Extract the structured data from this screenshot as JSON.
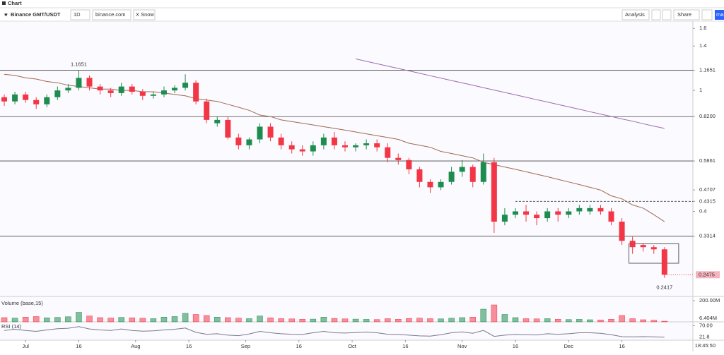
{
  "ui": {
    "tab": "Chart",
    "symbol": "Binance GMT/USDT",
    "interval": "1D",
    "source": "binance.com",
    "user": "X Snow",
    "analysis": "Analysis",
    "share": "Share",
    "cut_button": "ma",
    "time": "18:45:50"
  },
  "chart_data": {
    "type": "candlestick",
    "x": [
      0,
      3,
      6,
      9,
      12,
      15,
      18,
      21,
      24,
      27,
      30,
      33,
      36,
      39,
      42,
      45,
      48,
      51,
      54,
      57,
      60,
      63,
      66,
      69,
      72,
      75,
      78,
      81,
      84,
      87,
      90,
      93,
      96,
      99,
      102,
      105,
      108,
      111,
      114,
      117,
      120,
      123,
      126,
      129,
      132,
      135,
      138,
      141,
      144,
      147,
      150,
      153,
      156,
      159,
      162,
      165,
      168,
      171,
      174,
      177,
      180,
      183,
      186
    ],
    "open": [
      0.95,
      0.92,
      0.97,
      0.93,
      0.9,
      0.95,
      1.0,
      1.02,
      1.1,
      1.03,
      1.0,
      0.98,
      1.03,
      0.99,
      0.96,
      0.97,
      1.0,
      1.02,
      1.06,
      0.92,
      0.78,
      0.8,
      0.7,
      0.66,
      0.69,
      0.76,
      0.7,
      0.66,
      0.64,
      0.63,
      0.66,
      0.7,
      0.66,
      0.65,
      0.66,
      0.67,
      0.65,
      0.6,
      0.59,
      0.55,
      0.5,
      0.48,
      0.5,
      0.54,
      0.56,
      0.5,
      0.58,
      0.37,
      0.39,
      0.4,
      0.39,
      0.38,
      0.4,
      0.39,
      0.4,
      0.4,
      0.41,
      0.4,
      0.37,
      0.32,
      0.31,
      0.305,
      0.3
    ],
    "high": [
      0.97,
      0.99,
      0.99,
      0.95,
      0.97,
      1.03,
      1.05,
      1.1651,
      1.12,
      1.05,
      1.02,
      1.06,
      1.05,
      1.01,
      0.99,
      1.03,
      1.04,
      1.13,
      1.08,
      0.94,
      0.82,
      0.82,
      0.72,
      0.7,
      0.78,
      0.78,
      0.72,
      0.68,
      0.66,
      0.68,
      0.72,
      0.73,
      0.68,
      0.67,
      0.69,
      0.69,
      0.67,
      0.62,
      0.6,
      0.56,
      0.51,
      0.51,
      0.56,
      0.59,
      0.57,
      0.62,
      0.6,
      0.41,
      0.41,
      0.42,
      0.4,
      0.41,
      0.41,
      0.41,
      0.42,
      0.42,
      0.42,
      0.41,
      0.38,
      0.33,
      0.315,
      0.31,
      0.305
    ],
    "low": [
      0.89,
      0.9,
      0.91,
      0.87,
      0.88,
      0.93,
      0.98,
      1.0,
      1.0,
      0.97,
      0.95,
      0.96,
      0.97,
      0.93,
      0.94,
      0.95,
      0.98,
      1.0,
      0.9,
      0.78,
      0.76,
      0.69,
      0.64,
      0.64,
      0.67,
      0.68,
      0.64,
      0.62,
      0.61,
      0.61,
      0.64,
      0.64,
      0.63,
      0.63,
      0.64,
      0.63,
      0.58,
      0.57,
      0.53,
      0.48,
      0.46,
      0.47,
      0.49,
      0.52,
      0.48,
      0.49,
      0.34,
      0.36,
      0.38,
      0.37,
      0.36,
      0.37,
      0.37,
      0.38,
      0.39,
      0.39,
      0.39,
      0.36,
      0.31,
      0.29,
      0.295,
      0.29,
      0.2417
    ],
    "close": [
      0.92,
      0.97,
      0.93,
      0.9,
      0.95,
      1.0,
      1.02,
      1.1,
      1.03,
      1.0,
      0.98,
      1.03,
      0.99,
      0.96,
      0.97,
      1.0,
      1.02,
      1.06,
      0.92,
      0.8,
      0.8,
      0.7,
      0.66,
      0.69,
      0.76,
      0.7,
      0.66,
      0.64,
      0.63,
      0.66,
      0.7,
      0.66,
      0.65,
      0.66,
      0.67,
      0.65,
      0.6,
      0.59,
      0.55,
      0.5,
      0.48,
      0.5,
      0.54,
      0.56,
      0.5,
      0.58,
      0.37,
      0.39,
      0.4,
      0.39,
      0.38,
      0.4,
      0.39,
      0.4,
      0.41,
      0.41,
      0.4,
      0.37,
      0.32,
      0.305,
      0.305,
      0.3,
      0.2475
    ],
    "up_color": "#1e8c4e",
    "down_color": "#f23645",
    "lines": [
      {
        "color": "#a0694f",
        "values": [
          1.13,
          1.12,
          1.1,
          1.09,
          1.07,
          1.06,
          1.04,
          1.03,
          1.02,
          1.01,
          1.01,
          1.0,
          1.0,
          0.99,
          0.99,
          0.98,
          0.97,
          0.96,
          0.94,
          0.93,
          0.92,
          0.9,
          0.88,
          0.86,
          0.83,
          0.82,
          0.8,
          0.79,
          0.78,
          0.77,
          0.76,
          0.75,
          0.74,
          0.73,
          0.72,
          0.71,
          0.7,
          0.69,
          0.67,
          0.66,
          0.65,
          0.63,
          0.62,
          0.61,
          0.6,
          0.58,
          0.57,
          0.56,
          0.55,
          0.54,
          0.53,
          0.52,
          0.51,
          0.5,
          0.49,
          0.48,
          0.47,
          0.45,
          0.44,
          0.42,
          0.41,
          0.39,
          0.37
        ]
      },
      {
        "color": "#9c6bb0",
        "values": [
          null,
          null,
          null,
          null,
          null,
          null,
          null,
          null,
          null,
          null,
          null,
          null,
          null,
          null,
          null,
          null,
          null,
          null,
          null,
          null,
          null,
          null,
          null,
          null,
          null,
          null,
          null,
          null,
          null,
          null,
          null,
          null,
          null,
          1.27,
          1.247,
          1.225,
          1.203,
          1.181,
          1.16,
          1.139,
          1.118,
          1.098,
          1.078,
          1.059,
          1.04,
          1.021,
          1.003,
          0.985,
          0.967,
          0.95,
          0.932,
          0.916,
          0.899,
          0.883,
          0.867,
          0.851,
          0.836,
          0.821,
          0.806,
          0.792,
          0.777,
          0.763,
          0.75
        ]
      }
    ],
    "log_scale": true,
    "xlim": [
      -1.2,
      194
    ],
    "ylim": [
      0.21,
      1.69
    ],
    "yticks": [
      1.6,
      1.4,
      1.1651,
      1,
      {
        "value": 0.82,
        "label": "0.8200"
      },
      0.5861,
      0.4707,
      0.4315,
      0.4,
      0.3314
    ],
    "xticks": [
      {
        "value": 6,
        "label": "Jul"
      },
      {
        "value": 21,
        "label": "16"
      },
      {
        "value": 37,
        "label": "Aug"
      },
      {
        "value": 52,
        "label": "16"
      },
      {
        "value": 68,
        "label": "Sep"
      },
      {
        "value": 83,
        "label": "16"
      },
      {
        "value": 98,
        "label": "Oct"
      },
      {
        "value": 113,
        "label": "16"
      },
      {
        "value": 129,
        "label": "Nov"
      },
      {
        "value": 144,
        "label": "16"
      },
      {
        "value": 159,
        "label": "Dec"
      },
      {
        "value": 174,
        "label": "16"
      }
    ],
    "levels": [
      1.1651,
      0.82,
      0.5861,
      0.3314
    ],
    "dashed_level": {
      "value": 0.4315,
      "from": 144
    },
    "box": {
      "x": [
        176,
        190
      ],
      "y": [
        0.27,
        0.313
      ]
    },
    "volume": {
      "title": "Volume (base,15)",
      "values": [
        40000000,
        35000000,
        45000000,
        50000000,
        38000000,
        42000000,
        48000000,
        90000000,
        55000000,
        40000000,
        36000000,
        42000000,
        38000000,
        34000000,
        30000000,
        45000000,
        50000000,
        80000000,
        70000000,
        60000000,
        45000000,
        40000000,
        35000000,
        30000000,
        55000000,
        38000000,
        30000000,
        28000000,
        25000000,
        26000000,
        45000000,
        32000000,
        28000000,
        26000000,
        24000000,
        22000000,
        30000000,
        25000000,
        32000000,
        35000000,
        30000000,
        28000000,
        34000000,
        40000000,
        45000000,
        120000000,
        160000000,
        70000000,
        40000000,
        30000000,
        28000000,
        30000000,
        25000000,
        22000000,
        24000000,
        20000000,
        18000000,
        25000000,
        60000000,
        30000000,
        20000000,
        15000000,
        6404000
      ],
      "value_labels_last": "6.404M",
      "ylim": [
        0,
        240000000
      ],
      "yticks": [
        {
          "value": 200000000,
          "label": "200.00M"
        }
      ]
    },
    "rsi": {
      "title": "RSI (14)",
      "color": "#7a7a8c",
      "values": [
        50,
        55,
        50,
        46,
        52,
        57,
        59,
        66,
        56,
        52,
        50,
        56,
        50,
        47,
        48,
        52,
        55,
        60,
        42,
        34,
        36,
        30,
        28,
        35,
        46,
        40,
        36,
        34,
        33,
        40,
        46,
        40,
        39,
        41,
        43,
        40,
        34,
        33,
        30,
        27,
        26,
        32,
        40,
        44,
        38,
        50,
        25,
        30,
        33,
        32,
        31,
        36,
        34,
        36,
        40,
        40,
        38,
        32,
        24,
        23,
        24,
        23,
        21.8
      ],
      "ylim": [
        15,
        80
      ],
      "yticks": [
        {
          "value": 70,
          "label": "70.00"
        }
      ]
    }
  }
}
